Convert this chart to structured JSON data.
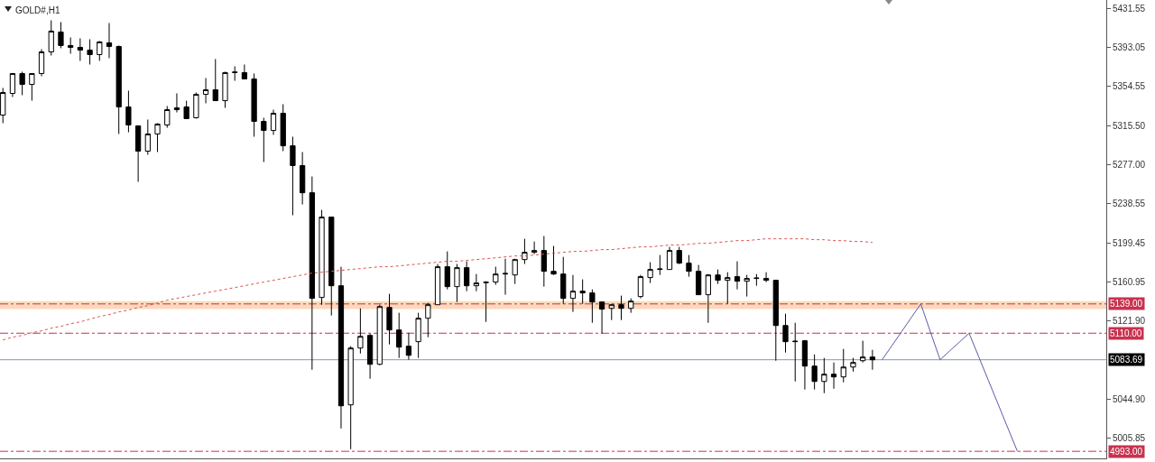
{
  "chart_data": {
    "type": "candlestick",
    "title": "GOLD#,H1",
    "color": "#000000",
    "grid": false,
    "categories": [
      null,
      null,
      null,
      null,
      null,
      null,
      null,
      null,
      null,
      null,
      null,
      null,
      null,
      null,
      null,
      null,
      null,
      null,
      null,
      null,
      null,
      null,
      null,
      null,
      null,
      null,
      null,
      null,
      null,
      null,
      null,
      null,
      null,
      null,
      null,
      null,
      null,
      null,
      null,
      null,
      null,
      null,
      null,
      null,
      null,
      null,
      null,
      null,
      null,
      null,
      null,
      null,
      null,
      null,
      null,
      null,
      null,
      null,
      null,
      null,
      null,
      null,
      null,
      null,
      null,
      null,
      null,
      null,
      null,
      null,
      null,
      null,
      null,
      null,
      null,
      null,
      null,
      null,
      null,
      null,
      null,
      null,
      null,
      null,
      null,
      null,
      null,
      null,
      null,
      null,
      null,
      null,
      null,
      null,
      null,
      null,
      null,
      null,
      null,
      null,
      null,
      null,
      null,
      null,
      null,
      null
    ],
    "ohlc": [
      [
        5326.0,
        5352.9,
        5318.0,
        5348.4
      ],
      [
        5347.5,
        5367.2,
        5343.9,
        5367.2
      ],
      [
        5367.2,
        5369.0,
        5345.7,
        5356.4
      ],
      [
        5356.4,
        5367.2,
        5340.3,
        5367.2
      ],
      [
        5367.2,
        5391.3,
        5364.5,
        5388.6
      ],
      [
        5388.6,
        5419.9,
        5385.0,
        5409.2
      ],
      [
        5408.3,
        5418.1,
        5392.2,
        5394.9
      ],
      [
        5394.9,
        5402.9,
        5386.8,
        5393.1
      ],
      [
        5393.1,
        5402.0,
        5379.7,
        5390.4
      ],
      [
        5390.4,
        5401.1,
        5376.1,
        5385.9
      ],
      [
        5385.9,
        5399.4,
        5379.7,
        5398.5
      ],
      [
        5397.6,
        5417.2,
        5382.4,
        5394.0
      ],
      [
        5394.0,
        5394.9,
        5307.3,
        5334.1
      ],
      [
        5334.1,
        5350.2,
        5309.0,
        5316.2
      ],
      [
        5315.3,
        5315.3,
        5259.9,
        5290.3
      ],
      [
        5290.3,
        5321.6,
        5286.7,
        5307.3
      ],
      [
        5307.3,
        5318.0,
        5289.4,
        5317.1
      ],
      [
        5316.2,
        5335.0,
        5313.5,
        5331.4
      ],
      [
        5331.4,
        5347.5,
        5328.7,
        5333.2
      ],
      [
        5334.1,
        5340.3,
        5322.5,
        5322.5
      ],
      [
        5323.4,
        5348.4,
        5322.5,
        5346.6
      ],
      [
        5346.6,
        5362.7,
        5337.7,
        5351.1
      ],
      [
        5351.1,
        5381.5,
        5340.3,
        5340.3
      ],
      [
        5340.3,
        5369.0,
        5333.2,
        5368.1
      ],
      [
        5368.1,
        5374.3,
        5360.0,
        5368.6
      ],
      [
        5368.1,
        5376.1,
        5361.8,
        5361.8
      ],
      [
        5361.8,
        5367.2,
        5304.6,
        5319.8
      ],
      [
        5319.8,
        5323.4,
        5279.5,
        5310.8
      ],
      [
        5310.8,
        5331.4,
        5306.4,
        5327.8
      ],
      [
        5327.8,
        5336.8,
        5290.3,
        5295.6
      ],
      [
        5295.6,
        5304.6,
        5226.8,
        5276.0
      ],
      [
        5276.0,
        5289.4,
        5237.5,
        5249.1
      ],
      [
        5249.1,
        5265.2,
        5073.8,
        5144.5
      ],
      [
        5145.4,
        5232.1,
        5138.2,
        5225.0
      ],
      [
        5225.0,
        5225.0,
        5127.5,
        5157.0
      ],
      [
        5157.0,
        5175.8,
        5015.7,
        5038.1
      ],
      [
        5039.0,
        5097.1,
        4995.1,
        5095.3
      ],
      [
        5095.3,
        5134.6,
        5089.9,
        5106.9
      ],
      [
        5107.8,
        5109.6,
        5064.9,
        5079.2
      ],
      [
        5079.2,
        5138.2,
        5078.3,
        5136.4
      ],
      [
        5135.5,
        5149.0,
        5098.9,
        5113.2
      ],
      [
        5113.2,
        5130.2,
        5085.5,
        5096.2
      ],
      [
        5097.1,
        5110.5,
        5083.7,
        5088.1
      ],
      [
        5101.6,
        5130.2,
        5085.5,
        5124.8
      ],
      [
        5124.8,
        5140.0,
        5106.0,
        5138.2
      ],
      [
        5138.2,
        5178.5,
        5138.2,
        5175.8
      ],
      [
        5175.8,
        5191.0,
        5153.4,
        5156.1
      ],
      [
        5156.1,
        5178.5,
        5140.9,
        5174.9
      ],
      [
        5174.9,
        5181.2,
        5151.6,
        5157.0
      ],
      [
        5157.0,
        5168.6,
        5151.6,
        5159.7
      ],
      [
        5160.6,
        5161.5,
        5121.2,
        5160.1
      ],
      [
        5160.6,
        5175.8,
        5157.9,
        5168.6
      ],
      [
        5168.6,
        5183.8,
        5148.1,
        5169.1
      ],
      [
        5167.7,
        5183.8,
        5158.8,
        5182.9
      ],
      [
        5182.9,
        5203.5,
        5178.5,
        5190.1
      ],
      [
        5190.1,
        5200.8,
        5188.3,
        5191.9
      ],
      [
        5191.9,
        5206.2,
        5156.1,
        5171.3
      ],
      [
        5171.3,
        5196.4,
        5167.7,
        5168.6
      ],
      [
        5168.6,
        5185.6,
        5139.1,
        5144.5
      ],
      [
        5144.5,
        5167.7,
        5131.1,
        5151.6
      ],
      [
        5151.6,
        5163.3,
        5139.1,
        5149.9
      ],
      [
        5149.9,
        5153.4,
        5120.3,
        5140.9
      ],
      [
        5140.9,
        5140.9,
        5109.6,
        5133.8
      ],
      [
        5134.6,
        5139.1,
        5123.0,
        5138.2
      ],
      [
        5138.2,
        5147.2,
        5123.0,
        5134.6
      ],
      [
        5134.6,
        5144.5,
        5130.2,
        5141.8
      ],
      [
        5146.3,
        5167.7,
        5144.5,
        5166.0
      ],
      [
        5165.1,
        5180.3,
        5159.7,
        5173.1
      ],
      [
        5173.1,
        5187.4,
        5167.7,
        5173.6
      ],
      [
        5173.1,
        5195.5,
        5173.1,
        5191.9
      ],
      [
        5191.9,
        5195.5,
        5178.5,
        5179.4
      ],
      [
        5179.4,
        5187.4,
        5166.0,
        5171.3
      ],
      [
        5171.3,
        5177.6,
        5148.1,
        5148.1
      ],
      [
        5148.1,
        5168.6,
        5120.3,
        5167.7
      ],
      [
        5167.7,
        5173.1,
        5158.8,
        5162.4
      ],
      [
        5162.4,
        5170.4,
        5139.1,
        5165.1
      ],
      [
        5166.0,
        5181.2,
        5153.4,
        5161.5
      ],
      [
        5161.5,
        5167.7,
        5146.3,
        5164.2
      ],
      [
        5164.2,
        5168.6,
        5157.0,
        5164.6
      ],
      [
        5164.2,
        5170.4,
        5160.6,
        5162.4
      ],
      [
        5162.4,
        5162.4,
        5082.8,
        5117.6
      ],
      [
        5117.6,
        5129.3,
        5090.8,
        5101.6
      ],
      [
        5101.6,
        5120.3,
        5062.2,
        5102.0
      ],
      [
        5102.5,
        5103.3,
        5054.2,
        5077.4
      ],
      [
        5077.4,
        5089.0,
        5054.2,
        5062.2
      ],
      [
        5062.2,
        5085.5,
        5050.6,
        5069.4
      ],
      [
        5069.4,
        5081.0,
        5055.0,
        5066.7
      ],
      [
        5066.7,
        5094.4,
        5061.3,
        5076.5
      ],
      [
        5076.5,
        5085.5,
        5072.0,
        5081.0
      ],
      [
        5082.8,
        5102.5,
        5081.0,
        5086.4
      ],
      [
        5086.4,
        5093.5,
        5073.8,
        5083.69
      ],
      null,
      null,
      null,
      null,
      null,
      null,
      null,
      null,
      null,
      null,
      null,
      null,
      null,
      null,
      null
    ],
    "series": [
      {
        "type": "line",
        "color": "#d9534f",
        "line_style": "dotted",
        "values": [
          5103.3,
          5106.0,
          5107.8,
          5110.5,
          5112.3,
          5115.0,
          5116.8,
          5119.4,
          5121.2,
          5123.9,
          5126.6,
          5128.4,
          5131.1,
          5132.9,
          5135.5,
          5137.3,
          5140.0,
          5142.7,
          5144.5,
          5146.3,
          5148.1,
          5149.9,
          5151.6,
          5153.4,
          5155.2,
          5157.0,
          5158.8,
          5160.6,
          5162.4,
          5164.2,
          5166.0,
          5167.7,
          5169.5,
          5170.4,
          5171.3,
          5172.2,
          5173.1,
          5174.0,
          5174.9,
          5175.8,
          5175.8,
          5176.7,
          5177.6,
          5178.5,
          5179.4,
          5180.3,
          5181.2,
          5181.2,
          5182.1,
          5182.9,
          5183.8,
          5184.7,
          5185.6,
          5186.5,
          5186.5,
          5187.4,
          5188.3,
          5189.2,
          5190.1,
          5191.0,
          5191.0,
          5191.9,
          5192.8,
          5192.8,
          5193.7,
          5194.6,
          5195.5,
          5195.5,
          5196.4,
          5197.3,
          5197.3,
          5198.1,
          5199.0,
          5199.0,
          5199.9,
          5200.8,
          5201.7,
          5201.7,
          5202.6,
          5203.5,
          5203.5,
          5203.5,
          5203.5,
          5203.5,
          5202.6,
          5202.6,
          5201.7,
          5201.7,
          5200.8,
          5200.8,
          5199.9,
          null,
          null,
          null,
          null,
          null,
          null,
          null,
          null,
          null,
          null,
          null,
          null,
          null,
          null,
          null
        ]
      },
      {
        "type": "line",
        "color": "#5b5ba8",
        "line_style": "solid",
        "values": [
          null,
          null,
          null,
          null,
          null,
          null,
          null,
          null,
          null,
          null,
          null,
          null,
          null,
          null,
          null,
          null,
          null,
          null,
          null,
          null,
          null,
          null,
          null,
          null,
          null,
          null,
          null,
          null,
          null,
          null,
          null,
          null,
          null,
          null,
          null,
          null,
          null,
          null,
          null,
          null,
          null,
          null,
          null,
          null,
          null,
          null,
          null,
          null,
          null,
          null,
          null,
          null,
          null,
          null,
          null,
          null,
          null,
          null,
          null,
          null,
          null,
          null,
          null,
          null,
          null,
          null,
          null,
          null,
          null,
          null,
          null,
          null,
          null,
          null,
          null,
          null,
          null,
          null,
          null,
          null,
          null,
          null,
          null,
          null,
          null,
          null,
          null,
          null,
          null,
          null,
          null,
          5083.7,
          5097.5,
          5111.3,
          5125.2,
          5139.0,
          5111.3,
          5083.7,
          5092.5,
          5101.2,
          5110.0,
          5086.6,
          5063.2,
          5039.8,
          5016.4,
          4993.0
        ]
      }
    ],
    "ylim": [
      4986,
      5440
    ],
    "yticks": [
      5431.55,
      5393.05,
      5354.55,
      {
        "value": 5315.5,
        "label": "5315.50"
      },
      {
        "value": 5277,
        "label": "5277.00"
      },
      5238.55,
      5199.45,
      5160.95,
      {
        "value": 5121.9,
        "label": "5121.90"
      },
      {
        "value": 5044.9,
        "label": "5044.90"
      },
      5005.85
    ],
    "ref_lines": [
      {
        "axis": "y",
        "value": 5139,
        "label": "5139.00",
        "color": "#c8324e",
        "line_style": "dashdot"
      },
      {
        "axis": "y",
        "value": 5110,
        "label": "5110.00",
        "color": "#c8324e",
        "line_style": "dashdot"
      },
      {
        "axis": "y",
        "value": 5083.69,
        "label": "5083.69",
        "color": "#8494b8",
        "line_style": "solid"
      },
      {
        "axis": "y",
        "value": 4993,
        "label": "4993.00",
        "color": "#c8324e",
        "line_style": "dashdot"
      }
    ],
    "bands": [
      {
        "axis": "y",
        "from": 5133.8,
        "to": 5141.8,
        "color": "#f9c99c"
      }
    ]
  }
}
